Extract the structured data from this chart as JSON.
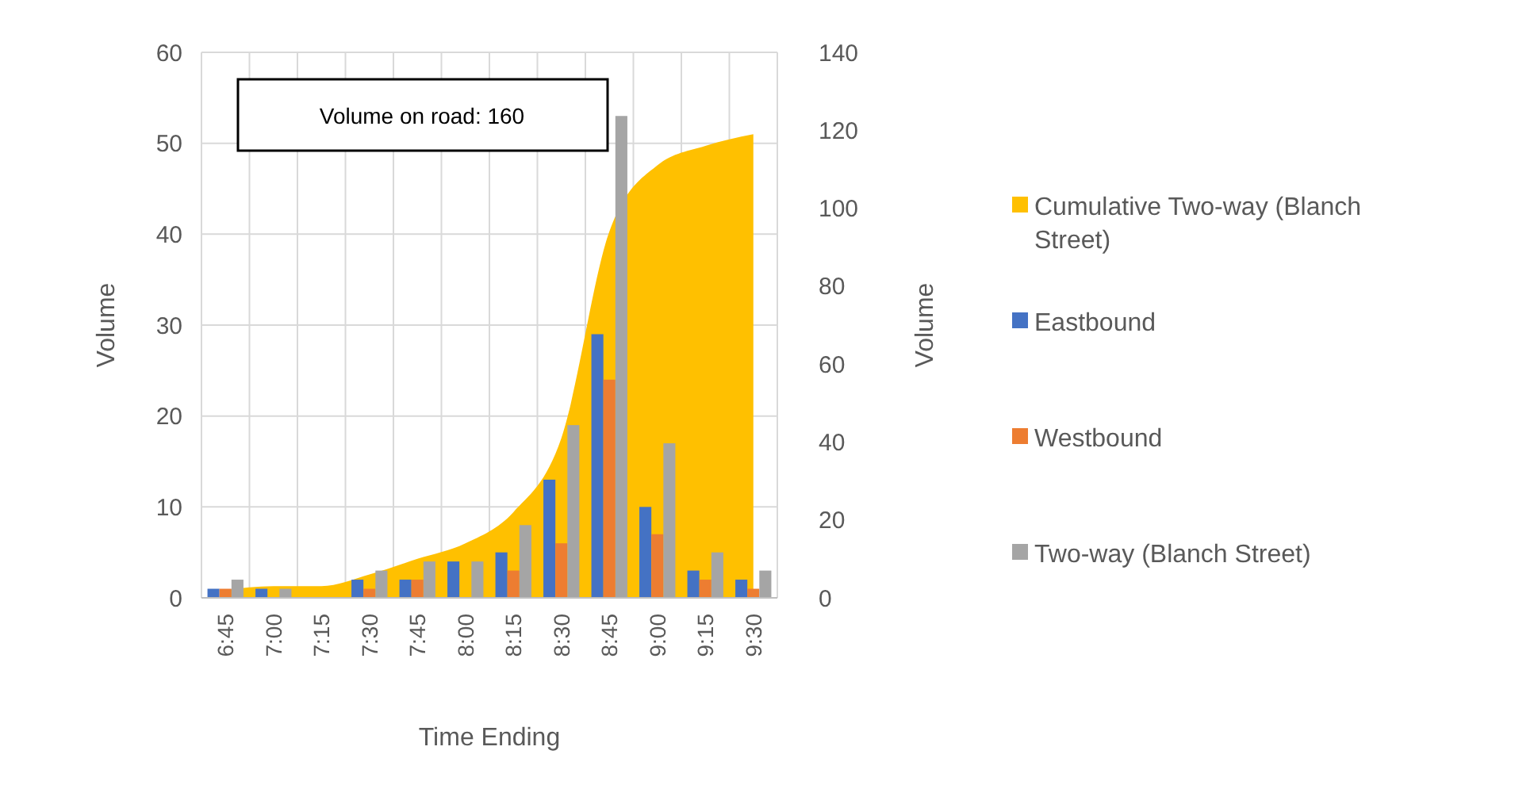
{
  "chart_data": {
    "type": "bar",
    "xlabel": "Time Ending",
    "ylabel": "Volume",
    "y2label": "Volume",
    "annotations": [
      "Volume on road: 160"
    ],
    "categories": [
      "6:45",
      "7:00",
      "7:15",
      "7:30",
      "7:45",
      "8:00",
      "8:15",
      "8:30",
      "8:45",
      "9:00",
      "9:15",
      "9:30"
    ],
    "series": [
      {
        "name": "Cumulative Two-way (Blanch Street)",
        "type": "area",
        "axis": "y2",
        "color": "#ffc000",
        "values": [
          2,
          3,
          3,
          6,
          10,
          14,
          22,
          41,
          94,
          111,
          116,
          119
        ]
      },
      {
        "name": "Eastbound",
        "color": "#4472c4",
        "values": [
          1,
          1,
          0,
          2,
          2,
          4,
          5,
          13,
          29,
          10,
          3,
          2
        ]
      },
      {
        "name": "Westbound",
        "color": "#ed7d31",
        "values": [
          1,
          0,
          0,
          1,
          2,
          0,
          3,
          6,
          24,
          7,
          2,
          1
        ]
      },
      {
        "name": "Two-way (Blanch Street)",
        "color": "#a5a5a5",
        "values": [
          2,
          1,
          0,
          3,
          4,
          4,
          8,
          19,
          53,
          17,
          5,
          3
        ]
      }
    ],
    "ylim": [
      0,
      60
    ],
    "yticks": [
      0,
      10,
      20,
      30,
      40,
      50,
      60
    ],
    "y2lim": [
      0,
      140
    ],
    "y2ticks": [
      0,
      20,
      40,
      60,
      80,
      100,
      120,
      140
    ],
    "grid": true,
    "legend": "right"
  }
}
